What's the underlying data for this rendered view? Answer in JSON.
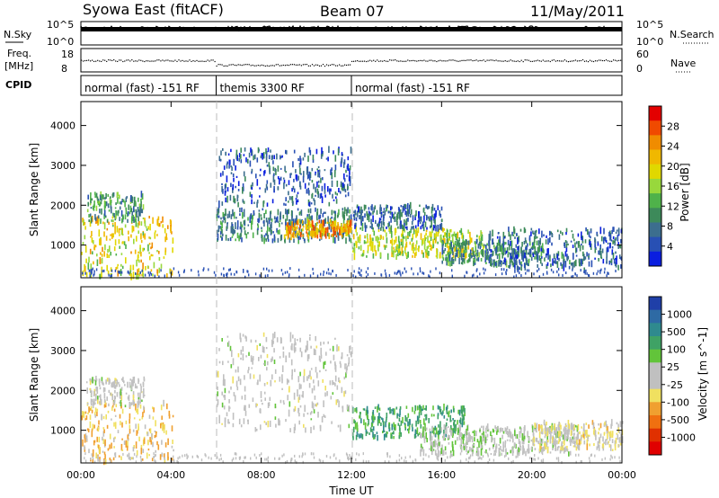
{
  "header": {
    "title": "Syowa East (fitACF)",
    "beam": "Beam 07",
    "date": "11/May/2011"
  },
  "panels": {
    "nsky": {
      "left_label": "N.Sky",
      "right_label": "N.Search",
      "left_ticks": [
        "10^5",
        "10^0"
      ],
      "right_ticks": [
        "10^5",
        "10^0"
      ]
    },
    "freq": {
      "left_label_line1": "Freq.",
      "left_label_line2": "[MHz]",
      "right_label": "Nave",
      "left_ticks": [
        "18",
        "8"
      ],
      "right_ticks": [
        "60",
        "0"
      ]
    },
    "cpid": {
      "label": "CPID",
      "segments": [
        {
          "text": "normal (fast) -151 RF",
          "start": 0,
          "end": 6
        },
        {
          "text": "themis 3300 RF",
          "start": 6,
          "end": 12
        },
        {
          "text": "normal (fast) -151 RF",
          "start": 12,
          "end": 24
        }
      ]
    }
  },
  "colorbars": {
    "power": {
      "label": "Power [dB]",
      "ticks": [
        "28",
        "24",
        "20",
        "16",
        "12",
        "8",
        "4"
      ],
      "colors": [
        "#e30000",
        "#f04a00",
        "#f08c00",
        "#f0b800",
        "#e0d800",
        "#98d83c",
        "#4fb24a",
        "#3d8a5a",
        "#3c6e8e",
        "#2850b4",
        "#0a1ee0"
      ]
    },
    "velocity": {
      "label": "Velocity [m s^-1]",
      "ticks": [
        "1000",
        "500",
        "100",
        "25",
        "-25",
        "-100",
        "-500",
        "-1000"
      ],
      "colors": [
        "#1f3fa8",
        "#2e6aa4",
        "#2f8a8e",
        "#3fa265",
        "#62c43a",
        "#c0c0c0",
        "#c0c0c0",
        "#f0e060",
        "#f0a030",
        "#f07010",
        "#e03000",
        "#e00000"
      ]
    }
  },
  "axes": {
    "ylabel": "Slant Range [km]",
    "yticks": [
      "1000",
      "2000",
      "3000",
      "4000"
    ],
    "xlabel": "Time UT",
    "xticks": [
      "00:00",
      "04:00",
      "08:00",
      "12:00",
      "16:00",
      "20:00",
      "00:00"
    ]
  },
  "chart_data": [
    {
      "type": "heatmap",
      "title": "Power",
      "xlabel": "Time UT",
      "ylabel": "Slant Range [km]",
      "xlim": [
        0,
        24
      ],
      "ylim": [
        180,
        4600
      ],
      "cbar_range": [
        0,
        30
      ],
      "blobs": [
        {
          "t0": 0.0,
          "t1": 4.1,
          "r0": 200,
          "r1": 1700,
          "v": 18
        },
        {
          "t0": 0.2,
          "t1": 2.8,
          "r0": 1600,
          "r1": 2300,
          "v": 10
        },
        {
          "t0": 6.0,
          "t1": 12.0,
          "r0": 1100,
          "r1": 1900,
          "v": 8
        },
        {
          "t0": 6.1,
          "t1": 12.0,
          "r0": 2000,
          "r1": 3400,
          "v": 5
        },
        {
          "t0": 9.0,
          "t1": 12.0,
          "r0": 1200,
          "r1": 1600,
          "v": 22
        },
        {
          "t0": 12.0,
          "t1": 18.0,
          "r0": 700,
          "r1": 1400,
          "v": 16
        },
        {
          "t0": 12.0,
          "t1": 16.0,
          "r0": 1400,
          "r1": 2000,
          "v": 6
        },
        {
          "t0": 16.0,
          "t1": 20.5,
          "r0": 500,
          "r1": 1100,
          "v": 9
        },
        {
          "t0": 18.0,
          "t1": 24.0,
          "r0": 400,
          "r1": 1400,
          "v": 6
        }
      ]
    },
    {
      "type": "heatmap",
      "title": "Velocity",
      "xlabel": "Time UT",
      "ylabel": "Slant Range [km]",
      "xlim": [
        0,
        24
      ],
      "ylim": [
        180,
        4600
      ],
      "cbar_range": [
        -1000,
        1000
      ],
      "blobs": [
        {
          "t0": 0.0,
          "t1": 4.1,
          "r0": 200,
          "r1": 1700,
          "v": -300
        },
        {
          "t0": 0.2,
          "t1": 2.8,
          "r0": 1600,
          "r1": 2300,
          "v": 0
        },
        {
          "t0": 6.0,
          "t1": 12.0,
          "r0": 1000,
          "r1": 3400,
          "v": 0
        },
        {
          "t0": 12.0,
          "t1": 17.0,
          "r0": 800,
          "r1": 1600,
          "v": 400
        },
        {
          "t0": 15.0,
          "t1": 22.0,
          "r0": 400,
          "r1": 1100,
          "v": 80
        },
        {
          "t0": 20.0,
          "t1": 24.0,
          "r0": 500,
          "r1": 1200,
          "v": -150
        }
      ]
    }
  ]
}
